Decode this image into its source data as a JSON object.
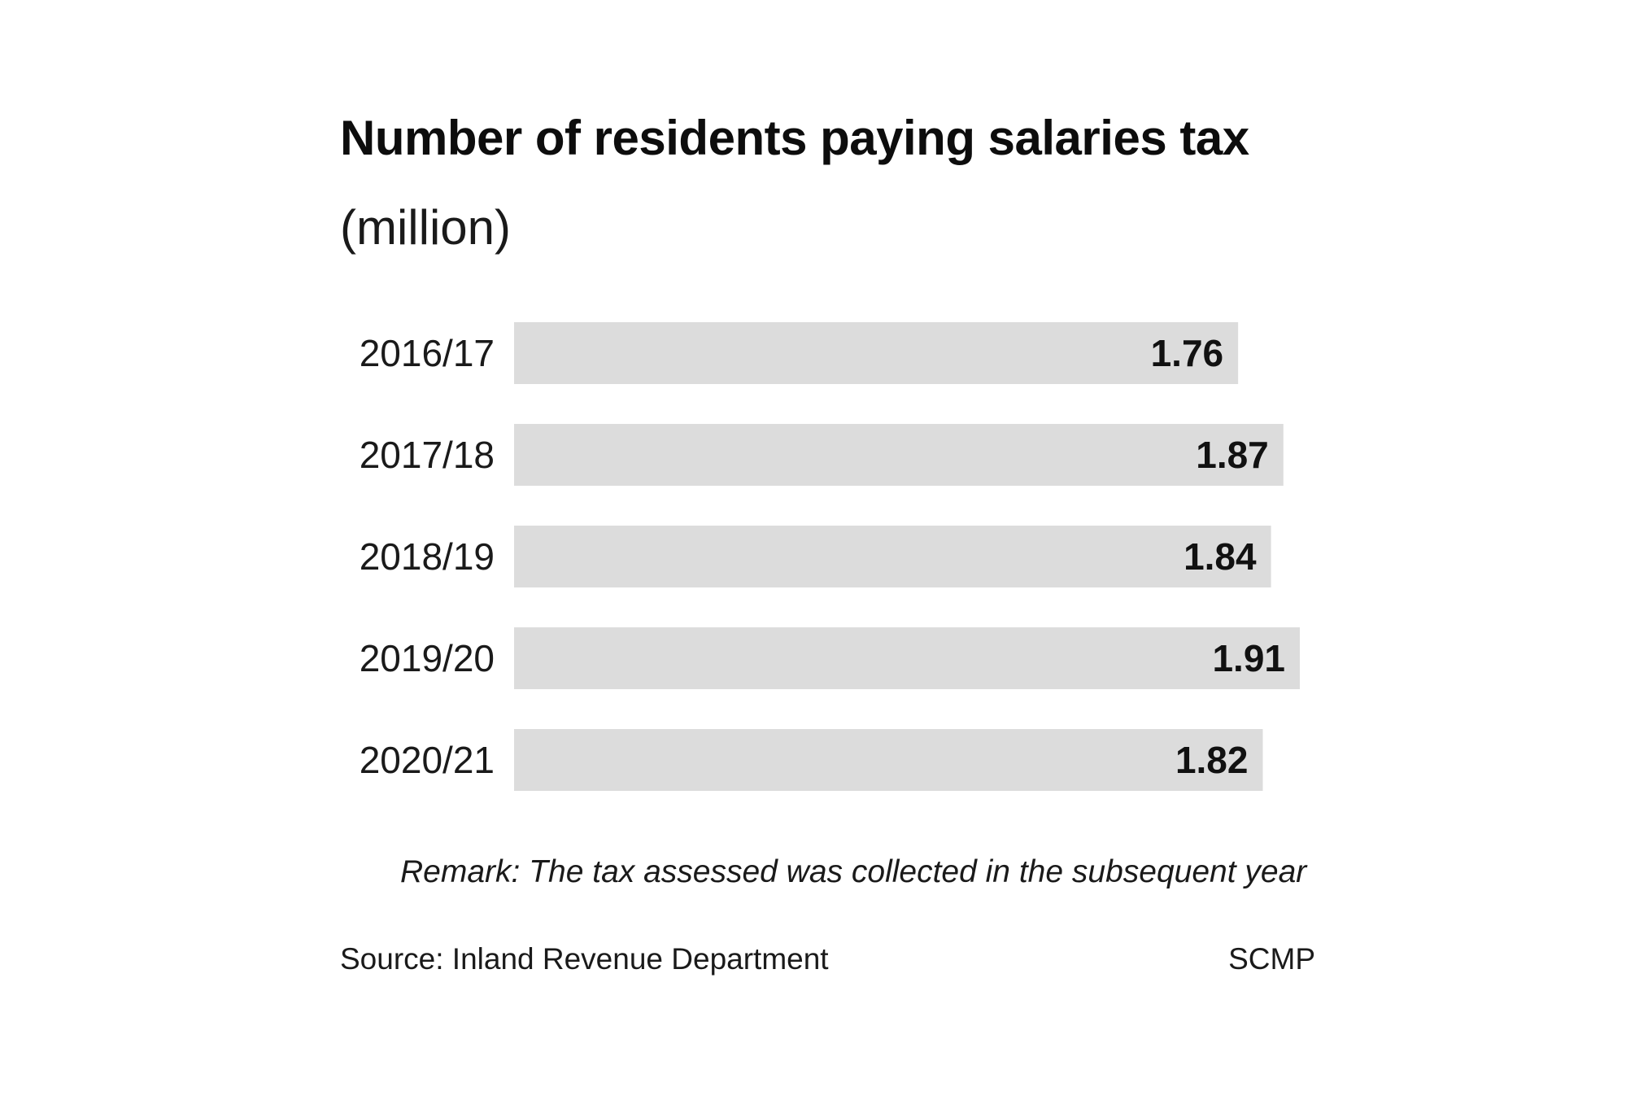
{
  "chart_data": {
    "type": "bar",
    "orientation": "horizontal",
    "title": "Number of residents paying salaries tax",
    "subtitle": "(million)",
    "categories": [
      "2016/17",
      "2017/18",
      "2018/19",
      "2019/20",
      "2020/21"
    ],
    "values": [
      1.76,
      1.87,
      1.84,
      1.91,
      1.82
    ],
    "value_labels": [
      "1.76",
      "1.87",
      "1.84",
      "1.91",
      "1.82"
    ],
    "xlim": [
      0,
      1.91
    ],
    "grid": false,
    "colors": {
      "bar": "#dcdcdc",
      "label": "#111111"
    }
  },
  "remark": "Remark: The tax assessed was collected in the subsequent year",
  "source": "Source: Inland Revenue Department",
  "credit": "SCMP"
}
